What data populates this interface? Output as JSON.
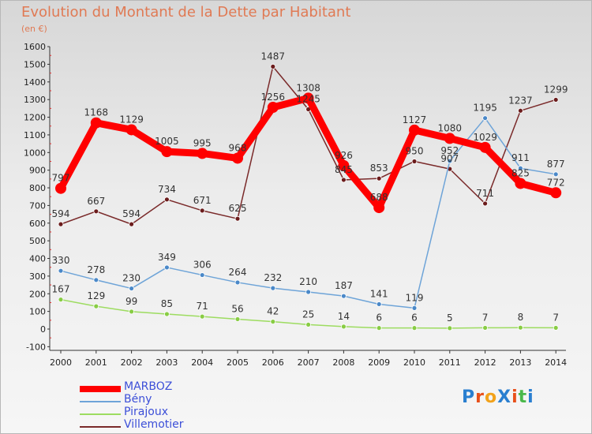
{
  "title": "Evolution du Montant de la Dette par Habitant",
  "subtitle": "(en €)",
  "chart_data": {
    "type": "line",
    "title": "Evolution du Montant de la Dette par Habitant",
    "ylabel": "(en €)",
    "x": [
      "2000",
      "2001",
      "2002",
      "2003",
      "2004",
      "2005",
      "2006",
      "2007",
      "2008",
      "2009",
      "2010",
      "2011",
      "2012",
      "2013",
      "2014"
    ],
    "ylim": [
      -100,
      1600
    ],
    "yticks": [
      -100,
      0,
      100,
      200,
      300,
      400,
      500,
      600,
      700,
      800,
      900,
      1000,
      1100,
      1200,
      1300,
      1400,
      1500,
      1600
    ],
    "grid": false,
    "legend_position": "bottom-left",
    "series": [
      {
        "name": "MARBOZ",
        "color": "#ff0000",
        "values": [
          797,
          1168,
          1129,
          1005,
          995,
          968,
          1256,
          1308,
          926,
          688,
          1127,
          1080,
          1029,
          825,
          772
        ],
        "labels": [
          "797",
          "1168",
          "1129",
          "1005",
          "995",
          "968",
          "1256",
          "1308",
          "926",
          "688",
          "1127",
          "1080",
          "1029",
          "825",
          "772"
        ]
      },
      {
        "name": "Bény",
        "color": "#5b9bd5",
        "values": [
          330,
          278,
          230,
          349,
          306,
          264,
          232,
          210,
          187,
          141,
          119,
          952,
          1195,
          911,
          877
        ],
        "labels": [
          "330",
          "278",
          "230",
          "349",
          "306",
          "264",
          "232",
          "210",
          "187",
          "141",
          "119",
          "952",
          "1195",
          "911",
          "877"
        ]
      },
      {
        "name": "Pirajoux",
        "color": "#99dd55",
        "values": [
          167,
          129,
          99,
          85,
          71,
          56,
          42,
          25,
          14,
          6,
          6,
          5,
          7,
          8,
          7
        ],
        "labels": [
          "167",
          "129",
          "99",
          "85",
          "71",
          "56",
          "42",
          "25",
          "14",
          "6",
          "6",
          "5",
          "7",
          "8",
          "7"
        ]
      },
      {
        "name": "Villemotier",
        "color": "#6b2020",
        "values": [
          594,
          667,
          594,
          734,
          671,
          625,
          1487,
          1245,
          845,
          853,
          950,
          907,
          711,
          1237,
          1299
        ],
        "labels": [
          "594",
          "667",
          "594",
          "734",
          "671",
          "625",
          "1487",
          "1245",
          "845",
          "853",
          "950",
          "907",
          "711",
          "1237",
          "1299"
        ]
      }
    ]
  },
  "logo": {
    "text": "ProXiti",
    "colors": [
      "#2a7fd0",
      "#e8501a",
      "#f2a21a",
      "#2a7fd0",
      "#e8501a",
      "#49b84a",
      "#2a7fd0"
    ]
  }
}
